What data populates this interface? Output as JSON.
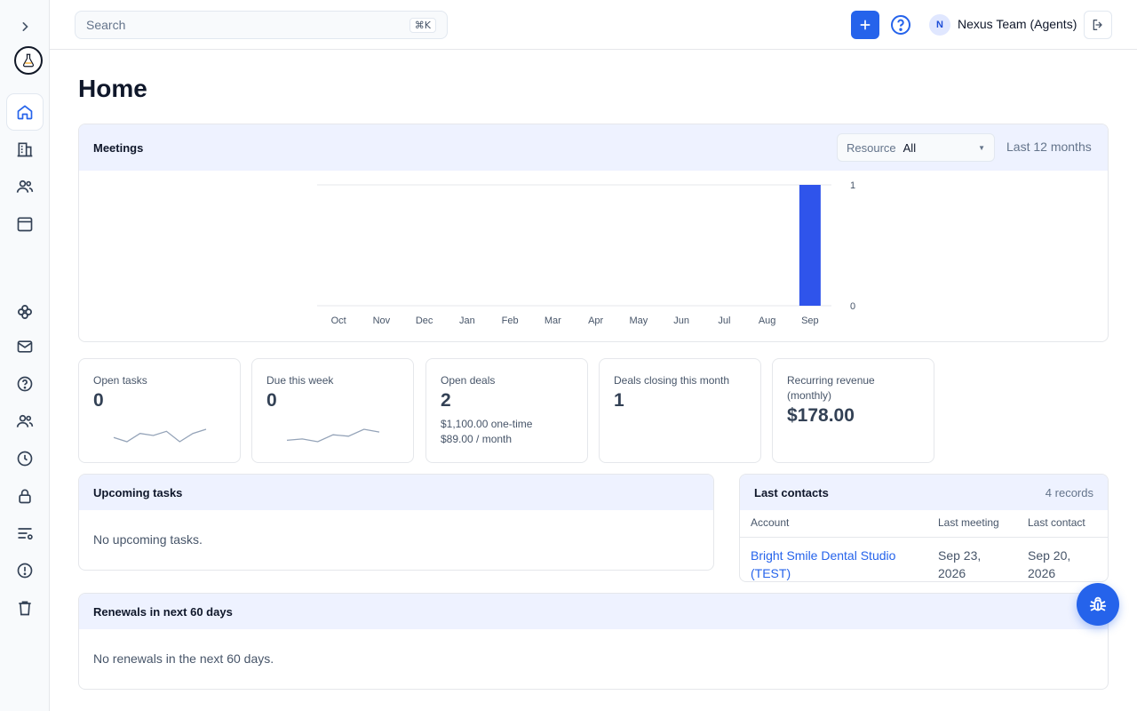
{
  "topbar": {
    "search_placeholder": "Search",
    "search_shortcut": "⌘K",
    "team_initial": "N",
    "team_name": "Nexus Team (Agents)"
  },
  "page": {
    "title": "Home"
  },
  "meetings": {
    "title": "Meetings",
    "resource_label": "Resource",
    "resource_value": "All",
    "range_label": "Last 12 months"
  },
  "chart_data": {
    "type": "bar",
    "categories": [
      "Oct",
      "Nov",
      "Dec",
      "Jan",
      "Feb",
      "Mar",
      "Apr",
      "May",
      "Jun",
      "Jul",
      "Aug",
      "Sep"
    ],
    "values": [
      0,
      0,
      0,
      0,
      0,
      0,
      0,
      0,
      0,
      0,
      0,
      1
    ],
    "ylim": [
      0,
      1
    ],
    "yticks": [
      "0",
      "1"
    ],
    "title": "",
    "xlabel": "",
    "ylabel": "",
    "color": "#2f54eb",
    "grid": true
  },
  "stats": [
    {
      "label": "Open tasks",
      "value": "0",
      "sparkline": [
        2,
        1,
        3,
        2.5,
        3.5,
        1,
        3,
        4
      ]
    },
    {
      "label": "Due this week",
      "value": "0",
      "sparkline": [
        1,
        1.5,
        0.5,
        3,
        2.5,
        5,
        4
      ]
    },
    {
      "label": "Open deals",
      "value": "2",
      "sub1": "$1,100.00 one-time",
      "sub2": "$89.00 / month"
    },
    {
      "label": "Deals closing this month",
      "value": "1"
    },
    {
      "label": "Recurring revenue (monthly)",
      "value": "$178.00"
    }
  ],
  "upcoming": {
    "title": "Upcoming tasks",
    "empty": "No upcoming tasks."
  },
  "contacts": {
    "title": "Last contacts",
    "records": "4 records",
    "columns": [
      "Account",
      "Last meeting",
      "Last contact"
    ],
    "rows": [
      {
        "account": "Bright Smile Dental Studio (TEST)",
        "last_meeting": "Sep 23, 2026",
        "last_contact": "Sep 20, 2026"
      }
    ]
  },
  "renewals": {
    "title": "Renewals in next 60 days",
    "empty": "No renewals in the next 60 days."
  },
  "icons": {
    "sidebar": [
      "chevron-right-icon",
      "app-logo",
      "home-icon",
      "building-icon",
      "users-icon",
      "calendar-icon",
      "integrations-icon",
      "mail-icon",
      "help-icon",
      "team-icon",
      "clock-icon",
      "lock-icon",
      "list-settings-icon",
      "alert-icon",
      "trash-icon"
    ],
    "fab": "bug-icon"
  },
  "colors": {
    "accent": "#2563eb",
    "header_bg": "#eef2ff"
  }
}
